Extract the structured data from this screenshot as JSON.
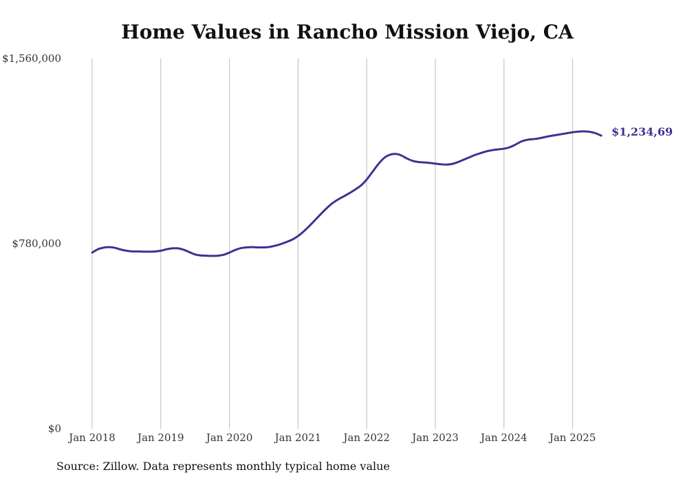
{
  "title": "Home Values in Rancho Mission Viejo, CA",
  "source_note": "Source: Zillow. Data represents monthly typical home value",
  "colors": {
    "line": "#3b3391",
    "grid": "#bbbbbb",
    "text": "#333333"
  },
  "chart_data": {
    "type": "line",
    "title": "Home Values in Rancho Mission Viejo, CA",
    "xlabel": "",
    "ylabel": "",
    "ylim": [
      0,
      1560000
    ],
    "y_ticks": [
      0,
      780000,
      1560000
    ],
    "y_tick_labels": [
      "$0",
      "$780,000",
      "$1,560,000"
    ],
    "x_ticks": [
      "2018-01",
      "2019-01",
      "2020-01",
      "2021-01",
      "2022-01",
      "2023-01",
      "2024-01",
      "2025-01"
    ],
    "x_tick_labels": [
      "Jan 2018",
      "Jan 2019",
      "Jan 2020",
      "Jan 2021",
      "Jan 2022",
      "Jan 2023",
      "Jan 2024",
      "Jan 2025"
    ],
    "grid": "vertical",
    "end_label": "$1,234,69",
    "series": [
      {
        "points": [
          [
            "2018-01",
            742000
          ],
          [
            "2018-02",
            756000
          ],
          [
            "2018-03",
            763000
          ],
          [
            "2018-04",
            765000
          ],
          [
            "2018-05",
            762000
          ],
          [
            "2018-06",
            755000
          ],
          [
            "2018-07",
            750000
          ],
          [
            "2018-08",
            747000
          ],
          [
            "2018-09",
            747000
          ],
          [
            "2018-10",
            746000
          ],
          [
            "2018-11",
            746000
          ],
          [
            "2018-12",
            747000
          ],
          [
            "2019-01",
            750000
          ],
          [
            "2019-02",
            756000
          ],
          [
            "2019-03",
            760000
          ],
          [
            "2019-04",
            760000
          ],
          [
            "2019-05",
            754000
          ],
          [
            "2019-06",
            744000
          ],
          [
            "2019-07",
            734000
          ],
          [
            "2019-08",
            730000
          ],
          [
            "2019-09",
            729000
          ],
          [
            "2019-10",
            728000
          ],
          [
            "2019-11",
            729000
          ],
          [
            "2019-12",
            733000
          ],
          [
            "2020-01",
            742000
          ],
          [
            "2020-02",
            753000
          ],
          [
            "2020-03",
            761000
          ],
          [
            "2020-04",
            764000
          ],
          [
            "2020-05",
            765000
          ],
          [
            "2020-06",
            764000
          ],
          [
            "2020-07",
            764000
          ],
          [
            "2020-08",
            766000
          ],
          [
            "2020-09",
            771000
          ],
          [
            "2020-10",
            778000
          ],
          [
            "2020-11",
            787000
          ],
          [
            "2020-12",
            797000
          ],
          [
            "2021-01",
            812000
          ],
          [
            "2021-02",
            832000
          ],
          [
            "2021-03",
            855000
          ],
          [
            "2021-04",
            880000
          ],
          [
            "2021-05",
            905000
          ],
          [
            "2021-06",
            929000
          ],
          [
            "2021-07",
            950000
          ],
          [
            "2021-08",
            966000
          ],
          [
            "2021-09",
            979000
          ],
          [
            "2021-10",
            993000
          ],
          [
            "2021-11",
            1008000
          ],
          [
            "2021-12",
            1025000
          ],
          [
            "2022-01",
            1050000
          ],
          [
            "2022-02",
            1082000
          ],
          [
            "2022-03",
            1114000
          ],
          [
            "2022-04",
            1140000
          ],
          [
            "2022-05",
            1154000
          ],
          [
            "2022-06",
            1158000
          ],
          [
            "2022-07",
            1152000
          ],
          [
            "2022-08",
            1139000
          ],
          [
            "2022-09",
            1129000
          ],
          [
            "2022-10",
            1124000
          ],
          [
            "2022-11",
            1122000
          ],
          [
            "2022-12",
            1120000
          ],
          [
            "2023-01",
            1117000
          ],
          [
            "2023-02",
            1114000
          ],
          [
            "2023-03",
            1113000
          ],
          [
            "2023-04",
            1116000
          ],
          [
            "2023-05",
            1124000
          ],
          [
            "2023-06",
            1134000
          ],
          [
            "2023-07",
            1144000
          ],
          [
            "2023-08",
            1154000
          ],
          [
            "2023-09",
            1162000
          ],
          [
            "2023-10",
            1169000
          ],
          [
            "2023-11",
            1174000
          ],
          [
            "2023-12",
            1177000
          ],
          [
            "2024-01",
            1180000
          ],
          [
            "2024-02",
            1186000
          ],
          [
            "2024-03",
            1197000
          ],
          [
            "2024-04",
            1210000
          ],
          [
            "2024-05",
            1217000
          ],
          [
            "2024-06",
            1220000
          ],
          [
            "2024-07",
            1223000
          ],
          [
            "2024-08",
            1228000
          ],
          [
            "2024-09",
            1233000
          ],
          [
            "2024-10",
            1237000
          ],
          [
            "2024-11",
            1241000
          ],
          [
            "2024-12",
            1245000
          ],
          [
            "2025-01",
            1249000
          ],
          [
            "2025-02",
            1252000
          ],
          [
            "2025-03",
            1253000
          ],
          [
            "2025-04",
            1251000
          ],
          [
            "2025-05",
            1245000
          ],
          [
            "2025-06",
            1235000
          ]
        ]
      }
    ]
  }
}
